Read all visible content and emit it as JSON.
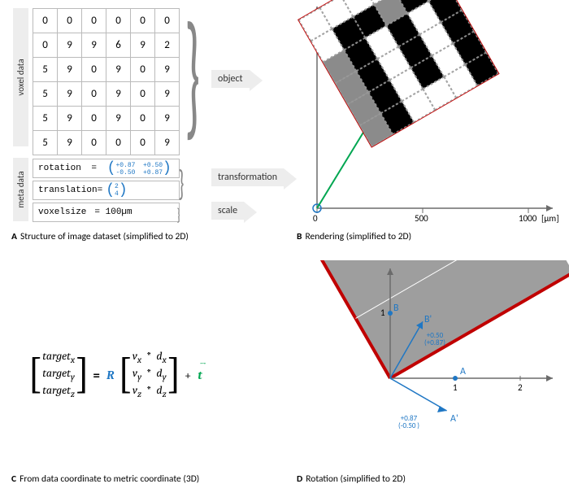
{
  "panelA": {
    "vlabel_voxel": "voxel data",
    "vlabel_meta": "meta data",
    "grid": [
      [
        0,
        0,
        0,
        0,
        0,
        0
      ],
      [
        0,
        9,
        9,
        6,
        9,
        2
      ],
      [
        5,
        9,
        0,
        9,
        0,
        9
      ],
      [
        5,
        9,
        0,
        9,
        0,
        9
      ],
      [
        5,
        9,
        0,
        9,
        0,
        9
      ],
      [
        5,
        9,
        0,
        0,
        0,
        9
      ]
    ],
    "meta_rotation_label": "rotation",
    "meta_rotation_mat": "( +0.87  +0.50 ; -0.50  +0.87 )",
    "mat_r0": "+0.87  +0.50",
    "mat_r1": "-0.50  +0.87",
    "meta_translation_label": "translation=",
    "vec_r0": "2",
    "vec_r1": "4",
    "meta_voxelsize_label": "voxelsize",
    "meta_voxelsize_value": "= 100µm",
    "callout_object": "object",
    "callout_transform": "transformation",
    "callout_scale": "scale",
    "caption_letter": "A",
    "caption_text": "Structure of image dataset (simplified to 2D)"
  },
  "panelB": {
    "xticks": [
      "0",
      "500",
      "1000"
    ],
    "xunit_label": "[µm]",
    "rotation_deg": -30,
    "cell_values_to_shade": {
      "black_threshold": 9,
      "grey_values": [
        5,
        6,
        2
      ]
    },
    "caption_letter": "B",
    "caption_text": "Rendering (simplified to 2D)",
    "origin_marker_color": "#1f77c4",
    "translation_arrow_color": "#00a651"
  },
  "panelC": {
    "target_rows": [
      "target",
      "target",
      "target"
    ],
    "target_sub": [
      "x",
      "y",
      "z"
    ],
    "v_rows": [
      "v",
      "v",
      "v"
    ],
    "v_sub": [
      "x",
      "y",
      "z"
    ],
    "d_rows": [
      "d",
      "d",
      "d"
    ],
    "d_sub": [
      "x",
      "y",
      "z"
    ],
    "equals": "=",
    "star": "*",
    "plus": "+",
    "R": "R",
    "t": "t",
    "caption_letter": "C",
    "caption_text": "From data coordinate to metric coordinate (3D)"
  },
  "panelD": {
    "points": {
      "A": "A",
      "B": "B",
      "Ap": "A'",
      "Bp": "B'"
    },
    "xticks": [
      "1",
      "2"
    ],
    "yticks": [
      "1"
    ],
    "vecA": {
      "r0": "+0.87",
      "r1": "-0.50"
    },
    "vecB": {
      "r0": "+0.50",
      "r1": "+0.87"
    },
    "caption_letter": "D",
    "caption_text": "Rotation (simplified to 2D)",
    "poly_fill": "#9e9e9e",
    "poly_border": "#c00000",
    "axis_color": "#6b6b6b",
    "vec_color": "#1f77c4"
  }
}
